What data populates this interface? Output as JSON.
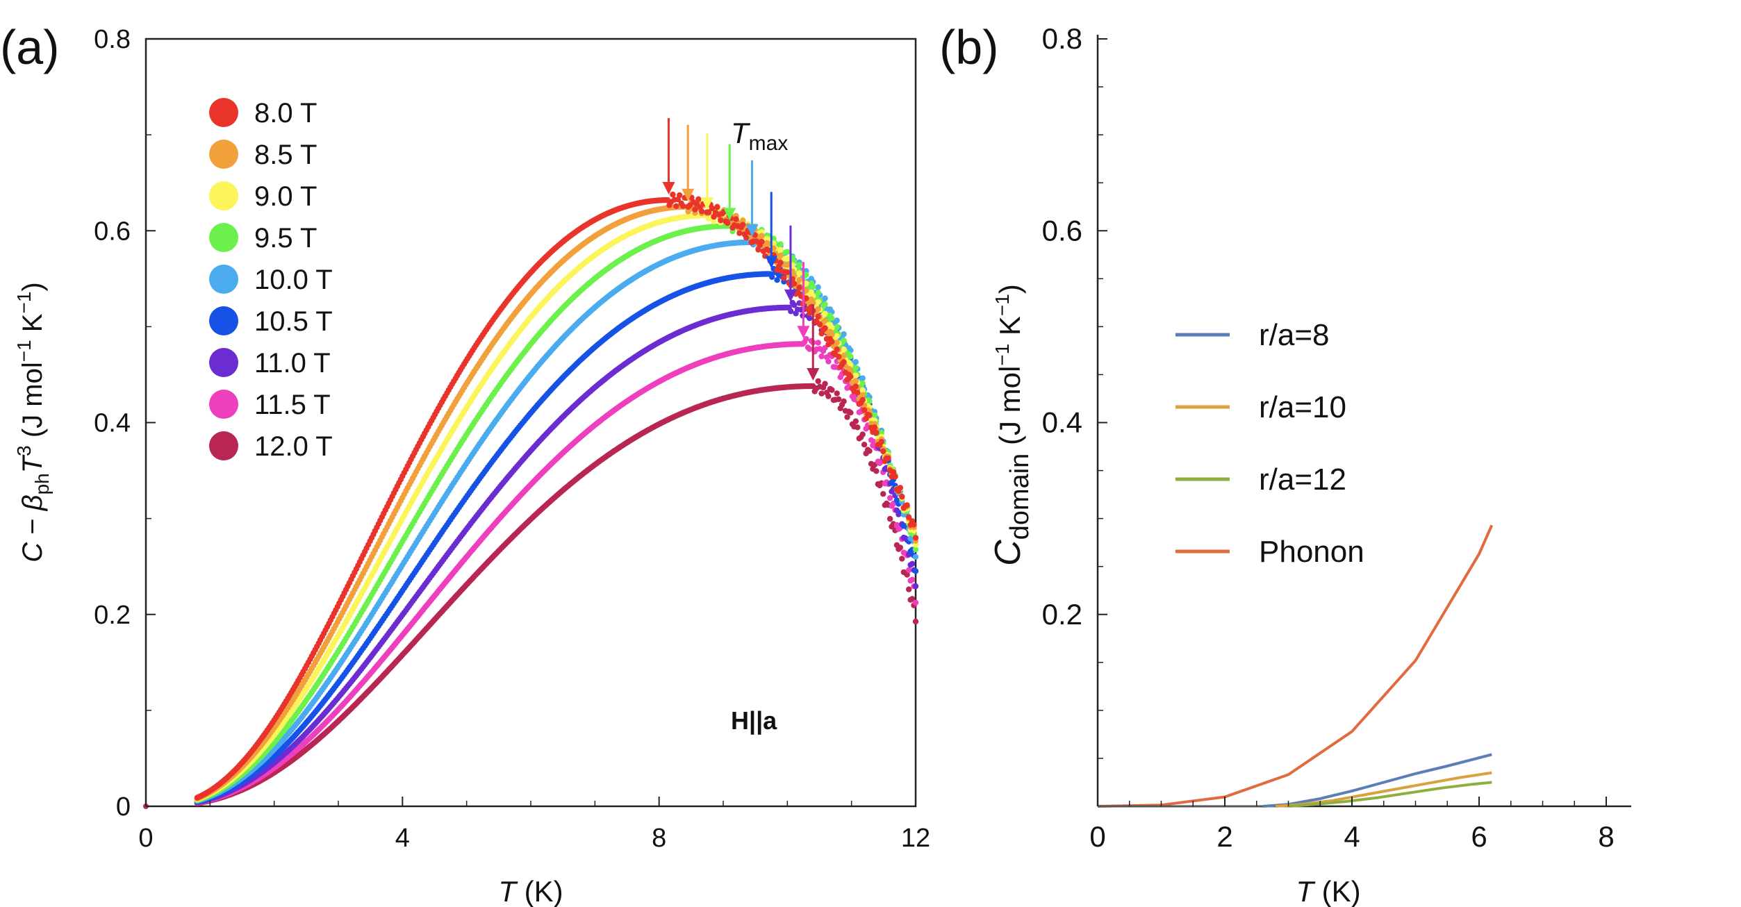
{
  "chart_data": [
    {
      "panel": "(a)",
      "type": "scatter",
      "xlabel_sym": "T",
      "xlabel_unit": " (K)",
      "ylabel_parts": {
        "c": "C",
        "minus": " − ",
        "beta": "β",
        "beta_sub": "ph",
        "t": "T",
        "t_sup": "3",
        "unit_open": " (J mol",
        "sup1": "−1",
        " k": " K",
        "sup2": "−1",
        "unit_close": ")"
      },
      "xlim": [
        0,
        12
      ],
      "ylim": [
        0,
        0.8
      ],
      "xticks": [
        0,
        4,
        8,
        12
      ],
      "xtick_labels": [
        "0",
        "4",
        "8",
        "12"
      ],
      "yticks": [
        0,
        0.2,
        0.4,
        0.6,
        0.8
      ],
      "ytick_labels": [
        "0",
        "0.2",
        "0.4",
        "0.6",
        "0.8"
      ],
      "annotation": "H||a",
      "tmax_label": "T",
      "tmax_sub": "max",
      "legend_position": "top-left",
      "series": [
        {
          "name": "8.0 T",
          "color": "#e8342a",
          "tmax": 8.15,
          "peak": 0.632
        },
        {
          "name": "8.5 T",
          "color": "#f2a03c",
          "tmax": 8.45,
          "peak": 0.625
        },
        {
          "name": "9.0 T",
          "color": "#fbf55a",
          "tmax": 8.75,
          "peak": 0.616
        },
        {
          "name": "9.5 T",
          "color": "#6cf04c",
          "tmax": 9.1,
          "peak": 0.605
        },
        {
          "name": "10.0 T",
          "color": "#4aabef",
          "tmax": 9.45,
          "peak": 0.588
        },
        {
          "name": "10.5 T",
          "color": "#1652e6",
          "tmax": 9.75,
          "peak": 0.555
        },
        {
          "name": "11.0 T",
          "color": "#6b2dd2",
          "tmax": 10.05,
          "peak": 0.52
        },
        {
          "name": "11.5 T",
          "color": "#ee3fbe",
          "tmax": 10.25,
          "peak": 0.482
        },
        {
          "name": "12.0 T",
          "color": "#b82752",
          "tmax": 10.4,
          "peak": 0.438
        }
      ]
    },
    {
      "panel": "(b)",
      "type": "line",
      "xlabel_sym": "T",
      "xlabel_unit": " (K)",
      "ylabel_parts": {
        "c": "C",
        "sub": "domain",
        "unit_open": " (J mol",
        "sup1": "−1",
        " k": " K",
        "sup2": "−1",
        "unit_close": ")"
      },
      "xlim": [
        0,
        8
      ],
      "ylim": [
        0,
        0.8
      ],
      "xticks": [
        0,
        2,
        4,
        6,
        8
      ],
      "xtick_labels": [
        "0",
        "2",
        "4",
        "6",
        "8"
      ],
      "yticks": [
        0.2,
        0.4,
        0.6,
        0.8
      ],
      "ytick_labels": [
        "0.2",
        "0.4",
        "0.6",
        "0.8"
      ],
      "legend_position": "center-right",
      "series": [
        {
          "name": "r/a=8",
          "color": "#5b7fb5",
          "x": [
            2.6,
            3.0,
            3.5,
            4.0,
            4.5,
            5.0,
            5.5,
            6.2
          ],
          "y": [
            0.0,
            0.002,
            0.008,
            0.016,
            0.025,
            0.034,
            0.042,
            0.054
          ]
        },
        {
          "name": "r/a=10",
          "color": "#d9a23e",
          "x": [
            2.8,
            3.2,
            3.7,
            4.2,
            4.7,
            5.2,
            5.7,
            6.2
          ],
          "y": [
            0.0,
            0.002,
            0.006,
            0.012,
            0.018,
            0.024,
            0.03,
            0.035
          ]
        },
        {
          "name": "r/a=12",
          "color": "#8eaf3e",
          "x": [
            3.0,
            3.4,
            3.9,
            4.4,
            4.9,
            5.4,
            5.9,
            6.2
          ],
          "y": [
            0.0,
            0.002,
            0.005,
            0.009,
            0.014,
            0.019,
            0.023,
            0.025
          ]
        },
        {
          "name": "Phonon",
          "color": "#e06b3e",
          "x": [
            0,
            1,
            2,
            3,
            4,
            5,
            6,
            6.2
          ],
          "y": [
            0.0,
            0.0013,
            0.0098,
            0.033,
            0.078,
            0.152,
            0.263,
            0.293
          ]
        }
      ]
    }
  ]
}
